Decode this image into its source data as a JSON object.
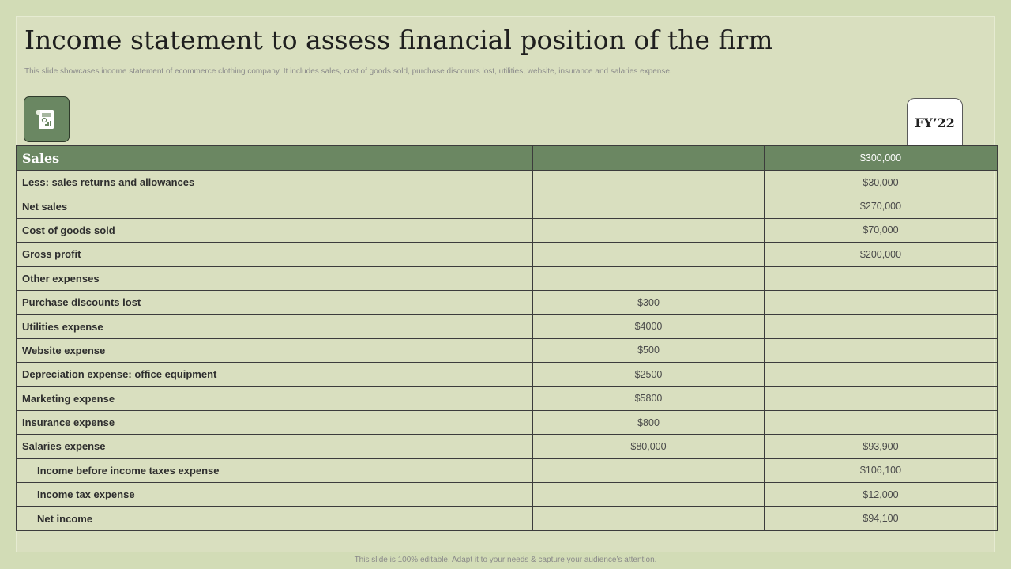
{
  "slide": {
    "title": "Income statement to assess financial position of the firm",
    "subtitle": "This slide showcases income statement of ecommerce clothing company. It includes sales, cost of goods sold, purchase discounts lost, utilities, website, insurance and salaries expense.",
    "icon": "income-statement-document-icon",
    "fy_label": "FY’22",
    "footer": "This slide is 100% editable.  Adapt it to your needs & capture your audience’s attention."
  },
  "table": {
    "header": {
      "label": "Sales",
      "col2": "",
      "col3": "$300,000"
    },
    "rows": [
      {
        "label": "Less: sales returns and allowances",
        "col2": "",
        "col3": "$30,000",
        "indent": false
      },
      {
        "label": "Net sales",
        "col2": "",
        "col3": "$270,000",
        "indent": false
      },
      {
        "label": "Cost of goods sold",
        "col2": "",
        "col3": "$70,000",
        "indent": false
      },
      {
        "label": "Gross profit",
        "col2": "",
        "col3": "$200,000",
        "indent": false
      },
      {
        "label": "Other expenses",
        "col2": "",
        "col3": "",
        "indent": false
      },
      {
        "label": "Purchase discounts lost",
        "col2": "$300",
        "col3": "",
        "indent": false
      },
      {
        "label": "Utilities expense",
        "col2": "$4000",
        "col3": "",
        "indent": false
      },
      {
        "label": "Website expense",
        "col2": "$500",
        "col3": "",
        "indent": false
      },
      {
        "label": "Depreciation expense: office equipment",
        "col2": "$2500",
        "col3": "",
        "indent": false
      },
      {
        "label": "Marketing expense",
        "col2": "$5800",
        "col3": "",
        "indent": false
      },
      {
        "label": "Insurance expense",
        "col2": "$800",
        "col3": "",
        "indent": false
      },
      {
        "label": "Salaries expense",
        "col2": "$80,000",
        "col3": "$93,900",
        "indent": false
      },
      {
        "label": "Income before income taxes expense",
        "col2": "",
        "col3": "$106,100",
        "indent": true
      },
      {
        "label": "Income tax expense",
        "col2": "",
        "col3": "$12,000",
        "indent": true
      },
      {
        "label": "Net income",
        "col2": "",
        "col3": "$94,100",
        "indent": true
      }
    ]
  },
  "colors": {
    "background": "#d2dcb6",
    "panel": "#d9dfbf",
    "accent_green": "#6b8762"
  }
}
